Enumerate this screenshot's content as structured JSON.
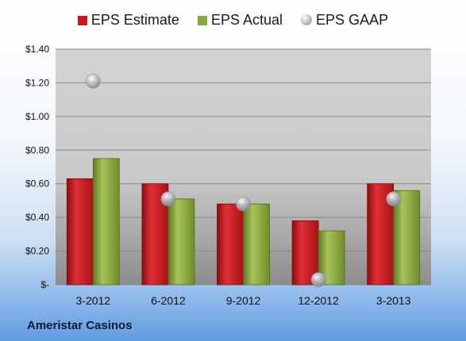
{
  "company": "Ameristar Casinos",
  "chart_data": {
    "type": "bar",
    "categories": [
      "3-2012",
      "6-2012",
      "9-2012",
      "12-2012",
      "3-2013"
    ],
    "series": [
      {
        "name": "EPS Estimate",
        "type": "bar",
        "color": "#c8161b",
        "values": [
          0.63,
          0.6,
          0.48,
          0.38,
          0.6
        ]
      },
      {
        "name": "EPS Actual",
        "type": "bar",
        "color": "#8aa63f",
        "values": [
          0.75,
          0.51,
          0.48,
          0.32,
          0.56
        ]
      },
      {
        "name": "EPS GAAP",
        "type": "scatter",
        "color": "#a9b0ba",
        "values": [
          1.21,
          0.51,
          0.48,
          0.03,
          0.51
        ]
      }
    ],
    "ylim": [
      0,
      1.4
    ],
    "yticks": [
      {
        "value": 0,
        "label": "$-"
      },
      {
        "value": 0.2,
        "label": "$0.20"
      },
      {
        "value": 0.4,
        "label": "$0.40"
      },
      {
        "value": 0.6,
        "label": "$0.60"
      },
      {
        "value": 0.8,
        "label": "$0.80"
      },
      {
        "value": 1.0,
        "label": "$1.00"
      },
      {
        "value": 1.2,
        "label": "$1.20"
      },
      {
        "value": 1.4,
        "label": "$1.40"
      }
    ],
    "grid": true,
    "legend": "top"
  }
}
